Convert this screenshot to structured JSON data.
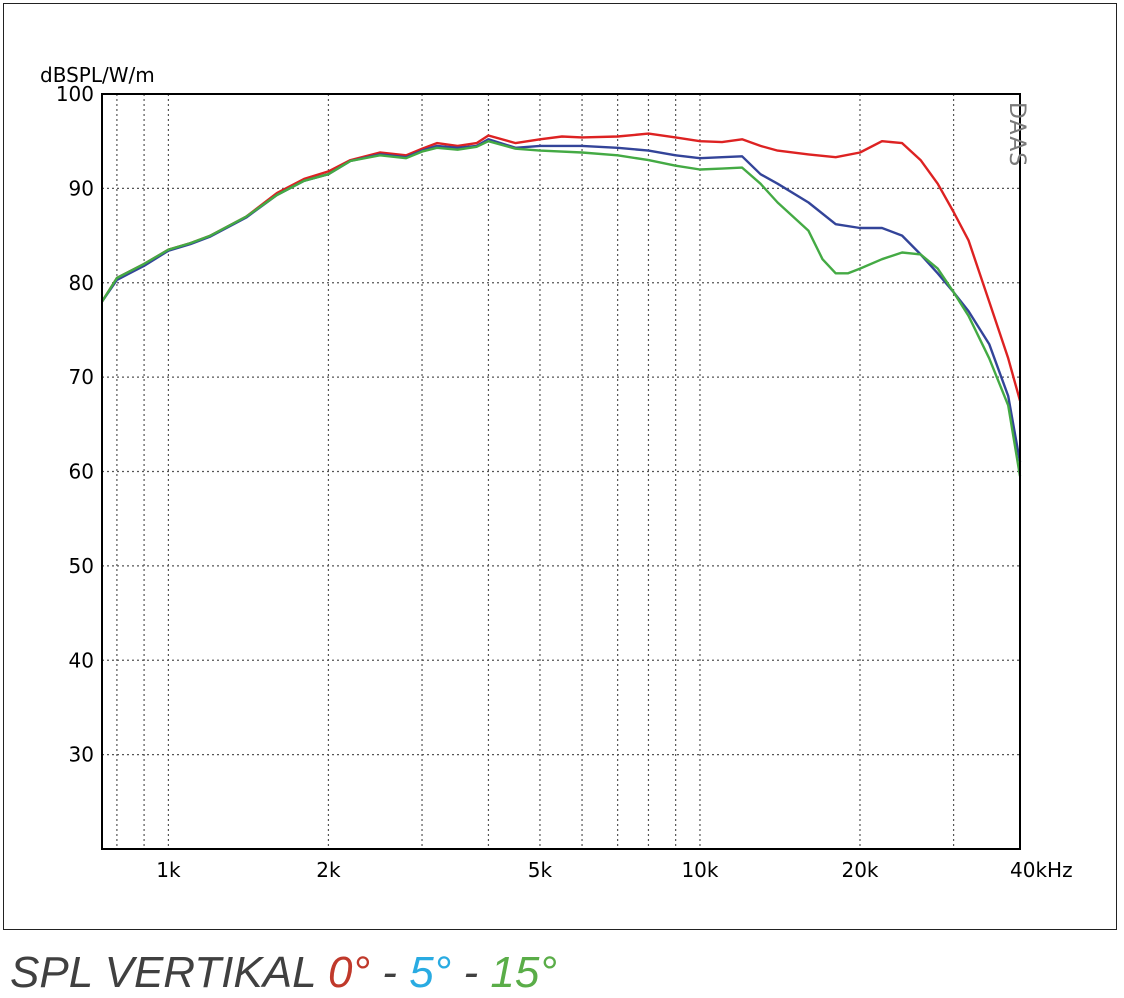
{
  "chart_data": {
    "type": "line",
    "ylabel": "dBSPL/W/m",
    "watermark": "DAAS",
    "x_scale": "log",
    "xlim": [
      750,
      40000
    ],
    "ylim": [
      20,
      100
    ],
    "y_ticks": [
      100,
      90,
      80,
      70,
      60,
      50,
      40,
      30
    ],
    "y_tick_labels": [
      "100",
      "90",
      "80",
      "70",
      "60",
      "50",
      "40",
      "30"
    ],
    "x_ticks": [
      1000,
      2000,
      5000,
      10000,
      20000,
      40000
    ],
    "x_tick_labels": [
      "1k",
      "2k",
      "5k",
      "10k",
      "20k",
      "40kHz"
    ],
    "x_grid": [
      800,
      900,
      1000,
      2000,
      3000,
      4000,
      5000,
      6000,
      7000,
      8000,
      9000,
      10000,
      20000,
      30000
    ],
    "grid": true,
    "series": [
      {
        "name": "0°",
        "color": "#dd2222",
        "points": [
          [
            750,
            78
          ],
          [
            800,
            80.5
          ],
          [
            900,
            82
          ],
          [
            1000,
            83.5
          ],
          [
            1100,
            84.2
          ],
          [
            1200,
            85
          ],
          [
            1400,
            87
          ],
          [
            1600,
            89.5
          ],
          [
            1800,
            91
          ],
          [
            2000,
            91.8
          ],
          [
            2200,
            93
          ],
          [
            2500,
            93.8
          ],
          [
            2800,
            93.5
          ],
          [
            3000,
            94.2
          ],
          [
            3200,
            94.8
          ],
          [
            3500,
            94.5
          ],
          [
            3800,
            94.8
          ],
          [
            4000,
            95.6
          ],
          [
            4500,
            94.8
          ],
          [
            5000,
            95.2
          ],
          [
            5500,
            95.5
          ],
          [
            6000,
            95.4
          ],
          [
            7000,
            95.5
          ],
          [
            8000,
            95.8
          ],
          [
            9000,
            95.4
          ],
          [
            10000,
            95
          ],
          [
            11000,
            94.9
          ],
          [
            12000,
            95.2
          ],
          [
            13000,
            94.5
          ],
          [
            14000,
            94
          ],
          [
            16000,
            93.6
          ],
          [
            18000,
            93.3
          ],
          [
            20000,
            93.8
          ],
          [
            22000,
            95
          ],
          [
            24000,
            94.8
          ],
          [
            26000,
            93
          ],
          [
            28000,
            90.5
          ],
          [
            30000,
            87.5
          ],
          [
            32000,
            84.5
          ],
          [
            35000,
            78
          ],
          [
            38000,
            72
          ],
          [
            40000,
            67.5
          ]
        ]
      },
      {
        "name": "5°",
        "color": "#334499",
        "points": [
          [
            750,
            78
          ],
          [
            800,
            80.3
          ],
          [
            900,
            81.8
          ],
          [
            1000,
            83.4
          ],
          [
            1100,
            84.1
          ],
          [
            1200,
            84.9
          ],
          [
            1400,
            86.9
          ],
          [
            1600,
            89.3
          ],
          [
            1800,
            90.8
          ],
          [
            2000,
            91.5
          ],
          [
            2200,
            92.9
          ],
          [
            2500,
            93.6
          ],
          [
            2800,
            93.3
          ],
          [
            3000,
            94
          ],
          [
            3200,
            94.5
          ],
          [
            3500,
            94.3
          ],
          [
            3800,
            94.5
          ],
          [
            4000,
            95.2
          ],
          [
            4500,
            94.3
          ],
          [
            5000,
            94.5
          ],
          [
            6000,
            94.5
          ],
          [
            7000,
            94.3
          ],
          [
            8000,
            94
          ],
          [
            9000,
            93.5
          ],
          [
            10000,
            93.2
          ],
          [
            11000,
            93.3
          ],
          [
            12000,
            93.4
          ],
          [
            13000,
            91.5
          ],
          [
            14000,
            90.5
          ],
          [
            16000,
            88.5
          ],
          [
            18000,
            86.2
          ],
          [
            20000,
            85.8
          ],
          [
            22000,
            85.8
          ],
          [
            24000,
            85
          ],
          [
            26000,
            83
          ],
          [
            28000,
            81
          ],
          [
            30000,
            79
          ],
          [
            32000,
            77
          ],
          [
            35000,
            73.5
          ],
          [
            38000,
            68
          ],
          [
            40000,
            61
          ]
        ]
      },
      {
        "name": "15°",
        "color": "#44aa44",
        "points": [
          [
            750,
            78
          ],
          [
            800,
            80.5
          ],
          [
            900,
            82
          ],
          [
            1000,
            83.5
          ],
          [
            1100,
            84.2
          ],
          [
            1200,
            85
          ],
          [
            1400,
            87
          ],
          [
            1600,
            89.3
          ],
          [
            1800,
            90.8
          ],
          [
            2000,
            91.5
          ],
          [
            2200,
            92.9
          ],
          [
            2500,
            93.5
          ],
          [
            2800,
            93.2
          ],
          [
            3000,
            93.9
          ],
          [
            3200,
            94.3
          ],
          [
            3500,
            94.1
          ],
          [
            3800,
            94.4
          ],
          [
            4000,
            95
          ],
          [
            4500,
            94.2
          ],
          [
            5000,
            94
          ],
          [
            6000,
            93.8
          ],
          [
            7000,
            93.5
          ],
          [
            8000,
            93
          ],
          [
            9000,
            92.4
          ],
          [
            10000,
            92
          ],
          [
            11000,
            92.1
          ],
          [
            12000,
            92.2
          ],
          [
            13000,
            90.5
          ],
          [
            14000,
            88.5
          ],
          [
            16000,
            85.5
          ],
          [
            17000,
            82.5
          ],
          [
            18000,
            81
          ],
          [
            19000,
            81
          ],
          [
            20000,
            81.5
          ],
          [
            22000,
            82.5
          ],
          [
            24000,
            83.2
          ],
          [
            26000,
            83
          ],
          [
            28000,
            81.5
          ],
          [
            30000,
            79
          ],
          [
            32000,
            76.5
          ],
          [
            35000,
            72
          ],
          [
            38000,
            67
          ],
          [
            40000,
            59.5
          ]
        ]
      }
    ]
  },
  "caption": {
    "prefix": "SPL VERTIKAL",
    "angle_0": "0°",
    "sep_1": "-",
    "angle_5": "5°",
    "sep_2": "-",
    "angle_15": "15°",
    "colors": {
      "angle_0": "#c0392b",
      "angle_5": "#29abe2",
      "angle_15": "#5aad48"
    }
  }
}
